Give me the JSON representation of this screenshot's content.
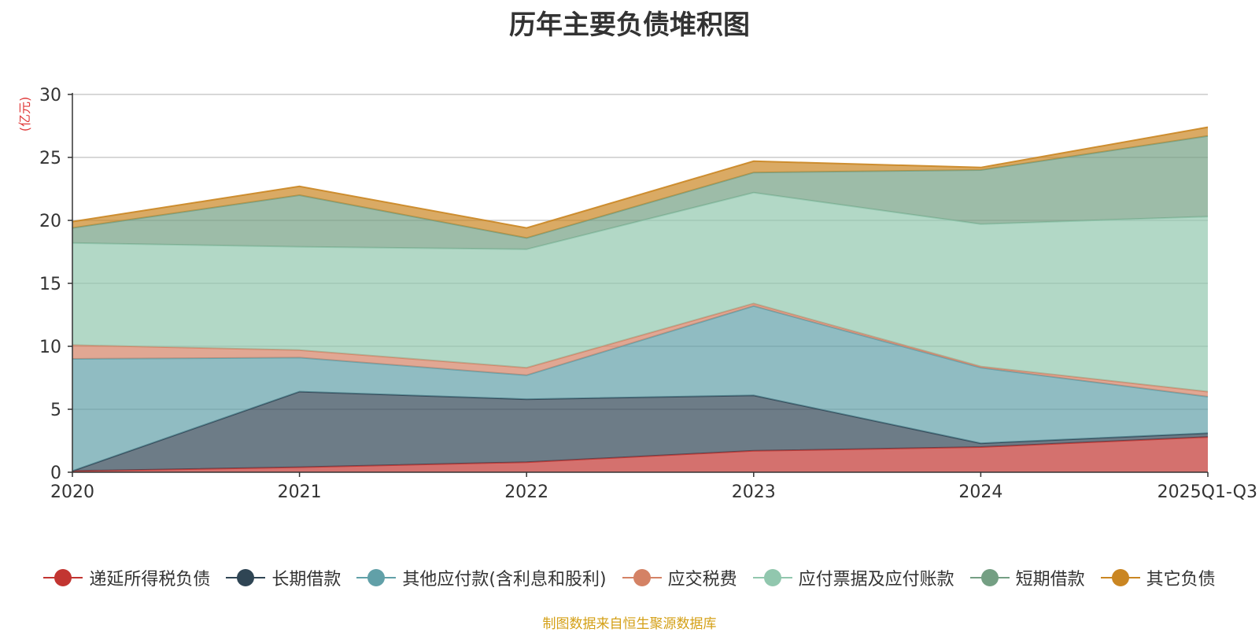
{
  "chart_data": {
    "type": "area",
    "stacked": true,
    "title": "历年主要负债堆积图",
    "ylabel": "(亿元)",
    "ylim": [
      0,
      30
    ],
    "yticks": [
      0,
      5,
      10,
      15,
      20,
      25,
      30
    ],
    "categories": [
      "2020",
      "2021",
      "2022",
      "2023",
      "2024",
      "2025Q1-Q3"
    ],
    "series": [
      {
        "name": "递延所得税负债",
        "color": "#c23531",
        "values": [
          0.1,
          0.4,
          0.8,
          1.7,
          2.0,
          2.8
        ]
      },
      {
        "name": "长期借款",
        "color": "#2f4554",
        "values": [
          0.0,
          6.0,
          5.0,
          4.4,
          0.3,
          0.3
        ]
      },
      {
        "name": "其他应付款(含利息和股利)",
        "color": "#61a0a8",
        "values": [
          8.9,
          2.7,
          1.9,
          7.1,
          6.0,
          2.9
        ]
      },
      {
        "name": "应交税费",
        "color": "#d48265",
        "values": [
          1.1,
          0.6,
          0.6,
          0.2,
          0.1,
          0.4
        ]
      },
      {
        "name": "应付票据及应付账款",
        "color": "#91c7ae",
        "values": [
          8.1,
          8.2,
          9.4,
          8.8,
          11.3,
          13.9
        ]
      },
      {
        "name": "短期借款",
        "color": "#749f83",
        "values": [
          1.2,
          4.1,
          0.9,
          1.6,
          4.3,
          6.4
        ]
      },
      {
        "name": "其它负债",
        "color": "#ca8622",
        "values": [
          0.5,
          0.7,
          0.8,
          0.9,
          0.2,
          0.7
        ]
      }
    ],
    "legend_position": "bottom",
    "grid": true
  },
  "source_note": "制图数据来自恒生聚源数据库"
}
